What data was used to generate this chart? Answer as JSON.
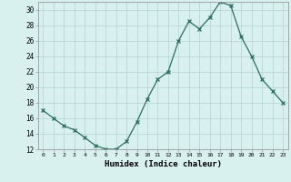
{
  "x": [
    0,
    1,
    2,
    3,
    4,
    5,
    6,
    7,
    8,
    9,
    10,
    11,
    12,
    13,
    14,
    15,
    16,
    17,
    18,
    19,
    20,
    21,
    22,
    23
  ],
  "y": [
    17,
    16,
    15,
    14.5,
    13.5,
    12.5,
    12,
    12,
    13,
    15.5,
    18.5,
    21,
    22,
    26,
    28.5,
    27.5,
    29,
    31,
    30.5,
    26.5,
    24,
    21,
    19.5,
    18
  ],
  "xlabel": "Humidex (Indice chaleur)",
  "ylabel": "",
  "line_color": "#2d6e63",
  "marker": "x",
  "bg_color": "#d8f0ee",
  "grid_color": "#b8d8d4",
  "ylim": [
    12,
    31
  ],
  "xlim": [
    -0.5,
    23.5
  ],
  "yticks": [
    12,
    14,
    16,
    18,
    20,
    22,
    24,
    26,
    28,
    30
  ],
  "xticks": [
    0,
    1,
    2,
    3,
    4,
    5,
    6,
    7,
    8,
    9,
    10,
    11,
    12,
    13,
    14,
    15,
    16,
    17,
    18,
    19,
    20,
    21,
    22,
    23
  ]
}
